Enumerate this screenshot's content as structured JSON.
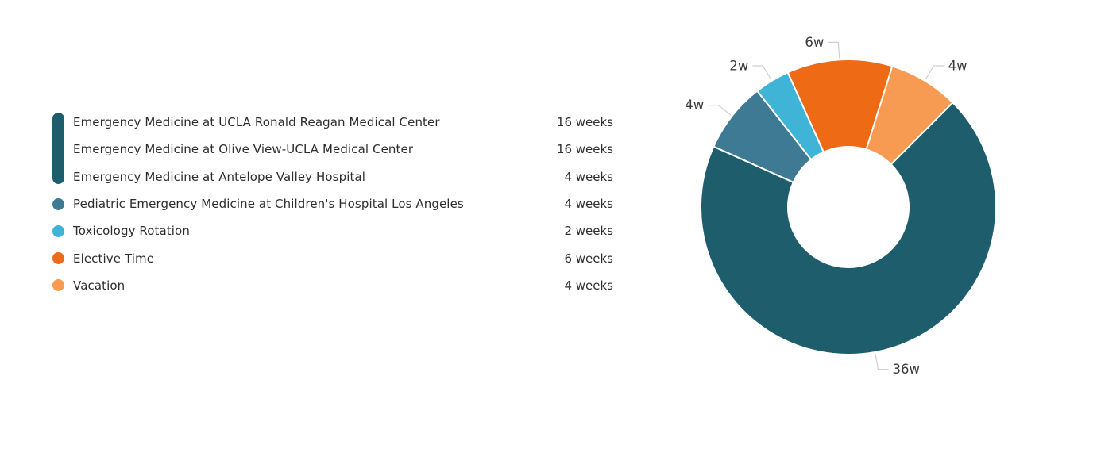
{
  "canvas": {
    "background": "#ffffff"
  },
  "legend": {
    "position": "left",
    "group_marker_color": "#1d5d6c",
    "items": [
      {
        "label": "Emergency Medicine at UCLA Ronald Reagan Medical Center",
        "value": "16 weeks",
        "color": "#1d5d6c",
        "marker": "group-bar"
      },
      {
        "label": "Emergency Medicine at Olive View-UCLA Medical Center",
        "value": "16 weeks",
        "color": "#1d5d6c",
        "marker": "group-bar"
      },
      {
        "label": "Emergency Medicine at Antelope Valley Hospital",
        "value": "4 weeks",
        "color": "#1d5d6c",
        "marker": "group-bar"
      },
      {
        "label": "Pediatric Emergency Medicine at Children's Hospital Los Angeles",
        "value": "4 weeks",
        "color": "#3e7a94",
        "marker": "dot"
      },
      {
        "label": "Toxicology Rotation",
        "value": "2 weeks",
        "color": "#3fb4d6",
        "marker": "dot"
      },
      {
        "label": "Elective Time",
        "value": "6 weeks",
        "color": "#ee6a14",
        "marker": "dot"
      },
      {
        "label": "Vacation",
        "value": "4 weeks",
        "color": "#f79a52",
        "marker": "dot"
      }
    ]
  },
  "chart_data": {
    "type": "pie",
    "variant": "donut",
    "unit": "weeks",
    "total_weeks": 52,
    "start_angle_deg": -24.23,
    "hole_ratio": 0.41,
    "legend_position": "left",
    "grid": false,
    "slices": [
      {
        "label": "6w",
        "value": 6,
        "color": "#ee6a14"
      },
      {
        "label": "4w",
        "value": 4,
        "color": "#f79a52"
      },
      {
        "label": "36w",
        "value": 36,
        "color": "#1d5d6c"
      },
      {
        "label": "4w",
        "value": 4,
        "color": "#3e7a94"
      },
      {
        "label": "2w",
        "value": 2,
        "color": "#3fb4d6"
      }
    ],
    "leader_line_color": "#cfcfcf"
  }
}
